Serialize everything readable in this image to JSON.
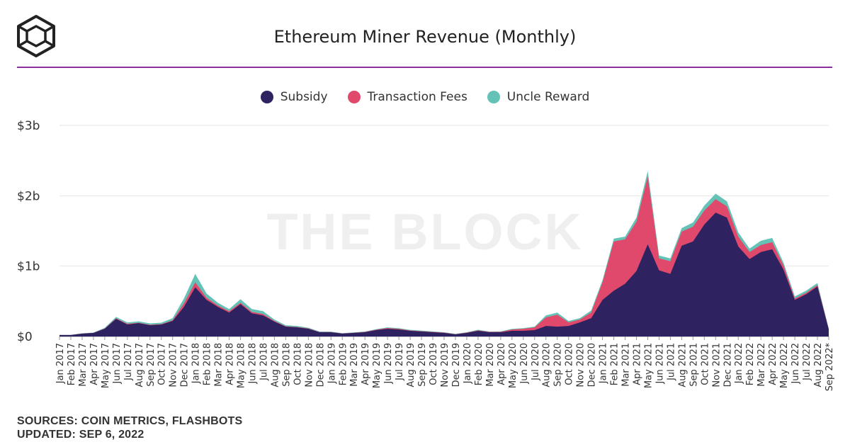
{
  "title": "Ethereum Miner Revenue (Monthly)",
  "watermark": "THE BLOCK",
  "footer": {
    "sources": "SOURCES: COIN METRICS, FLASHBOTS",
    "updated": "UPDATED: SEP 6, 2022"
  },
  "colors": {
    "subsidy": "#2e2260",
    "fees": "#e0496b",
    "uncle": "#64c3b6",
    "rule": "#8b2f9c",
    "grid": "#e6e6e6"
  },
  "chart_data": {
    "type": "area",
    "stacked": true,
    "title": "Ethereum Miner Revenue (Monthly)",
    "y_ticks": [
      "$0",
      "$1b",
      "$2b",
      "$3b"
    ],
    "ylim": [
      0,
      3
    ],
    "y_unit": "billion USD",
    "grid": true,
    "legend_position": "top-center",
    "categories": [
      "Jan 2017",
      "Feb 2017",
      "Mar 2017",
      "Apr 2017",
      "May 2017",
      "Jun 2017",
      "Jul 2017",
      "Aug 2017",
      "Sep 2017",
      "Oct 2017",
      "Nov 2017",
      "Dec 2017",
      "Jan 2018",
      "Feb 2018",
      "Mar 2018",
      "Apr 2018",
      "May 2018",
      "Jun 2018",
      "Jul 2018",
      "Aug 2018",
      "Sep 2018",
      "Oct 2018",
      "Nov 2018",
      "Dec 2018",
      "Jan 2019",
      "Feb 2019",
      "Mar 2019",
      "Apr 2019",
      "May 2019",
      "Jun 2019",
      "Jul 2019",
      "Aug 2019",
      "Sep 2019",
      "Oct 2019",
      "Nov 2019",
      "Dec 2019",
      "Jan 2020",
      "Feb 2020",
      "Mar 2020",
      "Apr 2020",
      "May 2020",
      "Jun 2020",
      "Jul 2020",
      "Aug 2020",
      "Sep 2020",
      "Oct 2020",
      "Nov 2020",
      "Dec 2020",
      "Jan 2021",
      "Feb 2021",
      "Mar 2021",
      "Apr 2021",
      "May 2021",
      "Jun 2021",
      "Jul 2021",
      "Aug 2021",
      "Sep 2021",
      "Oct 2021",
      "Nov 2021",
      "Dec 2021",
      "Jan 2022",
      "Feb 2022",
      "Mar 2022",
      "Apr 2022",
      "May 2022",
      "Jun 2022",
      "Jul 2022",
      "Aug 2022",
      "Sep 2022*"
    ],
    "series": [
      {
        "name": "Subsidy",
        "color": "#2e2260",
        "values": [
          0.02,
          0.02,
          0.04,
          0.05,
          0.11,
          0.25,
          0.17,
          0.19,
          0.16,
          0.17,
          0.22,
          0.42,
          0.7,
          0.52,
          0.42,
          0.34,
          0.46,
          0.33,
          0.3,
          0.21,
          0.14,
          0.13,
          0.11,
          0.06,
          0.06,
          0.04,
          0.05,
          0.06,
          0.09,
          0.11,
          0.1,
          0.08,
          0.07,
          0.06,
          0.05,
          0.03,
          0.05,
          0.08,
          0.06,
          0.06,
          0.08,
          0.08,
          0.09,
          0.15,
          0.14,
          0.15,
          0.2,
          0.26,
          0.52,
          0.65,
          0.75,
          0.93,
          1.31,
          0.94,
          0.89,
          1.29,
          1.35,
          1.59,
          1.76,
          1.69,
          1.28,
          1.1,
          1.2,
          1.24,
          0.95,
          0.52,
          0.6,
          0.71,
          0.1
        ]
      },
      {
        "name": "Transaction Fees",
        "color": "#e0496b",
        "values": [
          0.001,
          0.001,
          0.001,
          0.001,
          0.003,
          0.008,
          0.01,
          0.005,
          0.006,
          0.006,
          0.01,
          0.05,
          0.07,
          0.03,
          0.02,
          0.02,
          0.02,
          0.02,
          0.02,
          0.01,
          0.005,
          0.005,
          0.005,
          0.003,
          0.003,
          0.003,
          0.003,
          0.005,
          0.007,
          0.01,
          0.008,
          0.006,
          0.006,
          0.005,
          0.005,
          0.003,
          0.005,
          0.007,
          0.005,
          0.007,
          0.02,
          0.03,
          0.04,
          0.12,
          0.17,
          0.05,
          0.04,
          0.08,
          0.25,
          0.7,
          0.63,
          0.7,
          0.96,
          0.17,
          0.18,
          0.2,
          0.21,
          0.2,
          0.19,
          0.16,
          0.14,
          0.1,
          0.1,
          0.1,
          0.06,
          0.02,
          0.02,
          0.02,
          0.005
        ]
      },
      {
        "name": "Uncle Reward",
        "color": "#64c3b6",
        "values": [
          0.003,
          0.003,
          0.004,
          0.005,
          0.01,
          0.02,
          0.02,
          0.02,
          0.02,
          0.02,
          0.03,
          0.07,
          0.12,
          0.06,
          0.04,
          0.03,
          0.05,
          0.04,
          0.04,
          0.02,
          0.015,
          0.015,
          0.01,
          0.008,
          0.006,
          0.005,
          0.005,
          0.006,
          0.008,
          0.01,
          0.01,
          0.008,
          0.008,
          0.007,
          0.006,
          0.005,
          0.005,
          0.008,
          0.006,
          0.006,
          0.008,
          0.008,
          0.01,
          0.03,
          0.03,
          0.02,
          0.02,
          0.03,
          0.03,
          0.04,
          0.04,
          0.06,
          0.08,
          0.04,
          0.04,
          0.05,
          0.06,
          0.07,
          0.08,
          0.07,
          0.06,
          0.05,
          0.06,
          0.06,
          0.04,
          0.03,
          0.03,
          0.03,
          0.005
        ]
      }
    ]
  }
}
